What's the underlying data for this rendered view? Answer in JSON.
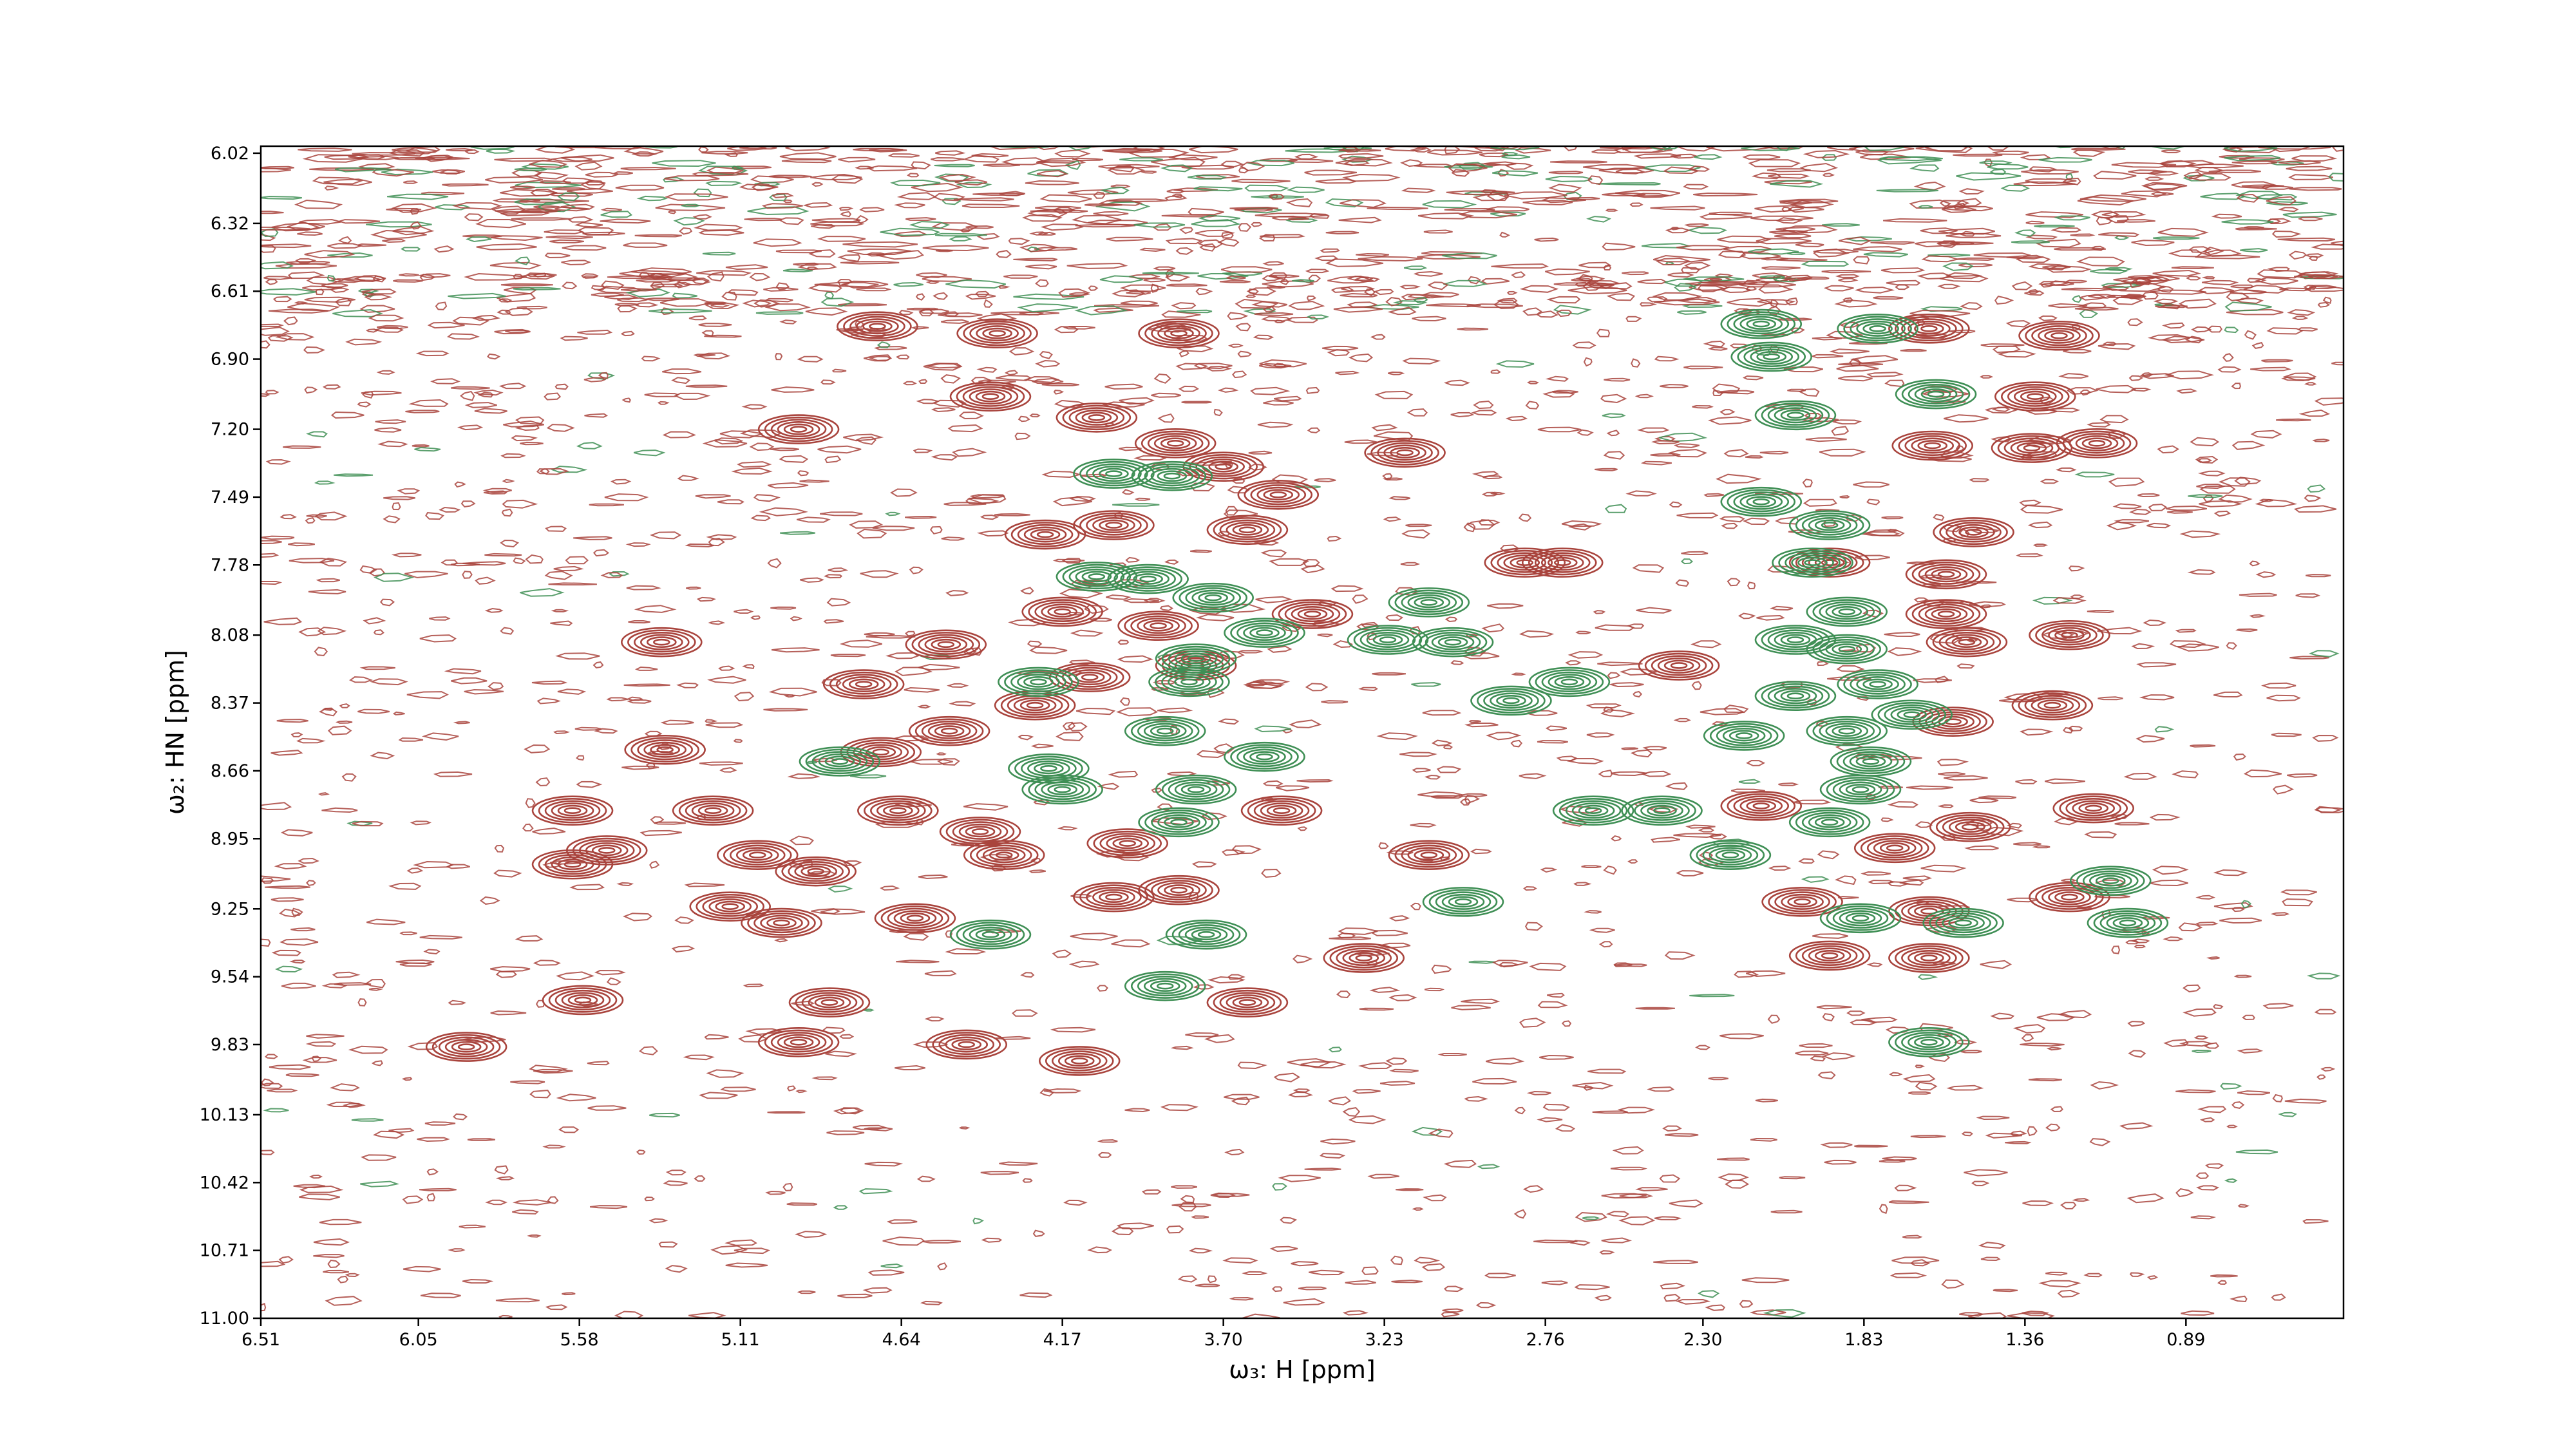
{
  "chart_data": {
    "type": "contour",
    "x_label": "ω₃: H [ppm]",
    "y_label": "ω₂: HN [ppm]",
    "xlim": [
      6.51,
      0.43
    ],
    "ylim": [
      5.99,
      11.0
    ],
    "xticks": [
      6.51,
      6.05,
      5.58,
      5.11,
      4.64,
      4.17,
      {
        "value": 3.7,
        "label": "3.70"
      },
      3.23,
      2.76,
      {
        "value": 2.3,
        "label": "2.30"
      },
      1.83,
      1.36,
      0.89
    ],
    "yticks": [
      6.02,
      6.32,
      6.61,
      {
        "value": 6.9,
        "label": "6.90"
      },
      {
        "value": 7.2,
        "label": "7.20"
      },
      7.49,
      7.78,
      8.08,
      8.37,
      8.66,
      8.95,
      9.25,
      9.54,
      9.83,
      10.13,
      10.42,
      10.71,
      {
        "value": 11,
        "label": "11.00"
      }
    ],
    "series": [
      {
        "color": "#a9443d",
        "x": [
          4.71,
          4.38,
          4.07,
          3.84,
          3.7,
          3.54,
          3.17,
          2.82,
          1.33,
          1.64,
          1.26,
          1.63,
          1.34,
          1.15,
          5.34,
          4.51,
          4.17,
          4.22,
          4.02,
          3.89,
          4.09,
          4.25,
          4.75,
          4.5,
          4.7,
          5.33,
          5.19,
          5.6,
          5.6,
          5.5,
          5.06,
          4.89,
          4.65,
          4.41,
          4.34,
          3.98,
          4.02,
          3.83,
          3.53,
          3.1,
          5.14,
          4.99,
          4.6,
          4.85,
          4.94,
          5.57,
          5.91,
          4.45,
          4.12,
          3.63,
          3.29,
          1.16,
          1.23,
          1.53,
          1.28,
          1.57,
          1.59,
          1.51,
          1.59,
          1.93,
          2.13,
          1.74,
          1.64,
          1.23,
          1.64,
          1.93,
          2.01,
          2.71,
          3.44,
          2.37,
          3.78,
          4.36,
          3.83,
          4.94,
          3.63,
          1.52
        ],
        "y": [
          6.76,
          7.06,
          7.15,
          7.26,
          7.36,
          7.48,
          7.3,
          7.77,
          7.06,
          6.77,
          6.8,
          7.27,
          7.28,
          7.26,
          8.11,
          8.12,
          7.98,
          7.65,
          7.61,
          8.04,
          8.26,
          8.38,
          8.29,
          8.49,
          8.58,
          8.57,
          8.83,
          8.83,
          9.06,
          9.0,
          9.02,
          9.09,
          8.83,
          8.92,
          9.02,
          8.97,
          9.2,
          9.17,
          8.83,
          9.02,
          9.24,
          9.31,
          9.29,
          9.65,
          9.82,
          9.64,
          9.84,
          9.83,
          9.9,
          9.65,
          9.46,
          8.82,
          8.08,
          8.11,
          8.38,
          8.45,
          7.99,
          7.64,
          7.82,
          7.77,
          8.81,
          8.99,
          9.26,
          9.2,
          9.46,
          9.45,
          9.22,
          7.77,
          7.99,
          8.21,
          8.21,
          6.79,
          6.79,
          7.2,
          7.63,
          8.9
        ]
      },
      {
        "color": "#3f8f55",
        "x": [
          4.02,
          3.85,
          4.07,
          3.92,
          3.73,
          3.78,
          3.58,
          3.22,
          3.03,
          3.1,
          2.13,
          2.1,
          1.79,
          2.03,
          1.62,
          2.13,
          1.93,
          1.98,
          1.88,
          1.88,
          2.03,
          1.79,
          2.03,
          2.18,
          1.88,
          1.69,
          1.84,
          1.81,
          2.62,
          2.42,
          3.83,
          3.78,
          3.58,
          4.21,
          4.17,
          3.87,
          3.8,
          4.24,
          3.0,
          4.38,
          3.75,
          3.87,
          1.54,
          1.84,
          1.64,
          2.22,
          1.06,
          1.11,
          2.69,
          2.86,
          1.93,
          4.82
        ],
        "y": [
          7.39,
          7.4,
          7.83,
          7.84,
          7.92,
          8.18,
          8.07,
          8.1,
          8.11,
          7.94,
          6.75,
          6.89,
          6.77,
          7.14,
          7.05,
          7.51,
          7.61,
          7.77,
          7.98,
          8.14,
          8.1,
          8.29,
          8.34,
          8.51,
          8.49,
          8.42,
          8.74,
          8.62,
          8.83,
          8.83,
          8.88,
          8.74,
          8.6,
          8.65,
          8.74,
          8.49,
          8.28,
          8.28,
          9.22,
          9.36,
          9.36,
          9.58,
          9.31,
          9.29,
          9.82,
          9.02,
          9.31,
          9.13,
          8.28,
          8.36,
          8.88,
          8.62
        ]
      }
    ]
  }
}
